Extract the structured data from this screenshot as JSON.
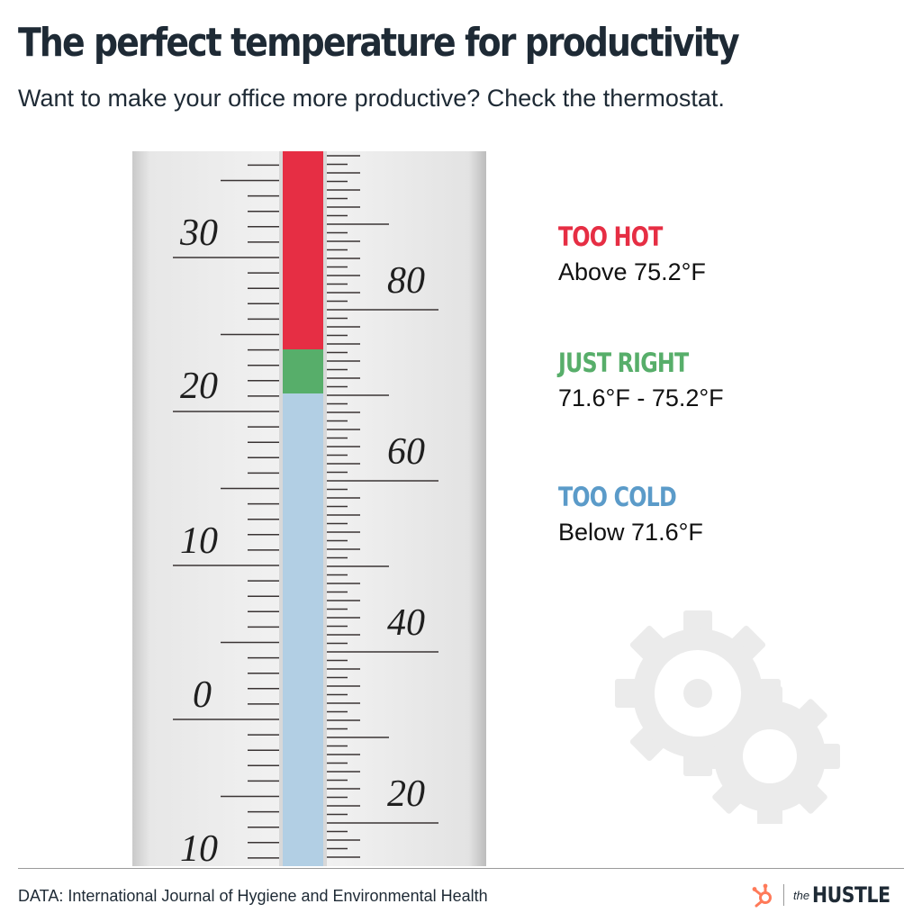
{
  "header": {
    "title": "The perfect temperature for productivity",
    "subtitle": "Want to make your office more productive? Check the thermostat."
  },
  "thermometer": {
    "celsius_labels": [
      "30",
      "20",
      "10",
      "0",
      "10"
    ],
    "fahrenheit_labels": [
      "80",
      "60",
      "40",
      "20"
    ],
    "zones": [
      {
        "name": "too-hot",
        "color": "#e62e44"
      },
      {
        "name": "just-right",
        "color": "#57ae6a"
      },
      {
        "name": "too-cold",
        "color": "#b2cfe4"
      }
    ]
  },
  "legend": [
    {
      "label": "TOO HOT",
      "range": "Above 75.2°F",
      "color": "#e62e44"
    },
    {
      "label": "JUST RIGHT",
      "range": "71.6°F - 75.2°F",
      "color": "#57ae6a"
    },
    {
      "label": "TOO COLD",
      "range": "Below 71.6°F",
      "color": "#5b9bc9"
    }
  ],
  "decoration": {
    "icon": "gears-icon",
    "color": "#ebebeb"
  },
  "footer": {
    "source": "DATA: International Journal of Hygiene and Environmental Health",
    "brand_prefix": "the",
    "brand_name": "HUSTLE",
    "logo_icon": "hubspot-sprocket-icon",
    "logo_color": "#ff7a59"
  }
}
